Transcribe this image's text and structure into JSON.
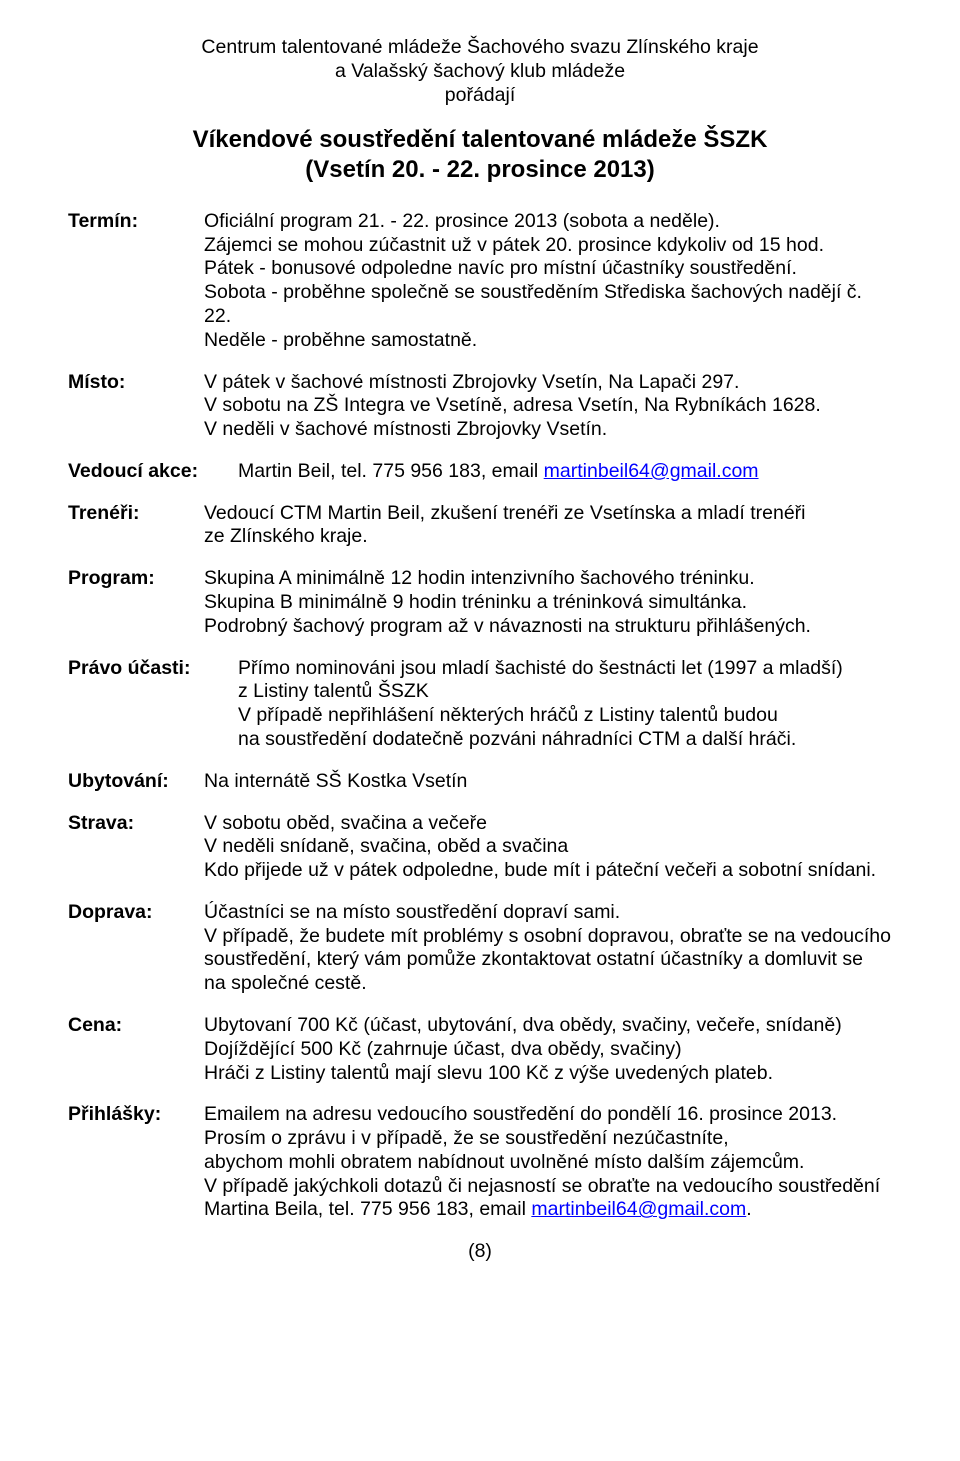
{
  "header": {
    "l1": "Centrum talentované mládeže Šachového svazu Zlínského kraje",
    "l2": "a Valašský šachový klub mládeže",
    "l3": "pořádají",
    "title": "Víkendové soustředění talentované mládeže ŠSZK",
    "sub": "(Vsetín 20. - 22. prosince 2013)"
  },
  "labels": {
    "termin": "Termín:",
    "misto": "Místo:",
    "vedouci": "Vedoucí akce:",
    "treneri": "Trenéři:",
    "program": "Program:",
    "pravo": "Právo účasti:",
    "ubytovani": "Ubytování:",
    "strava": "Strava:",
    "doprava": "Doprava:",
    "cena": "Cena:",
    "prihlasky": "Přihlášky:"
  },
  "termin": {
    "p1": "Oficiální program 21. - 22. prosince 2013 (sobota a neděle).",
    "p2": "Zájemci se mohou zúčastnit už v pátek 20. prosince kdykoliv od 15 hod.",
    "p3": "Pátek - bonusové odpoledne navíc pro místní účastníky soustředění.",
    "p4": "Sobota - proběhne společně se soustředěním Střediska šachových nadějí č. 22.",
    "p5": "Neděle - proběhne samostatně."
  },
  "misto": {
    "p1": "V pátek v šachové místnosti Zbrojovky Vsetín, Na Lapači 297.",
    "p2": "V sobotu na ZŠ Integra ve Vsetíně, adresa Vsetín, Na Rybníkách 1628.",
    "p3": "V neděli v šachové místnosti Zbrojovky Vsetín."
  },
  "vedouci": {
    "pre": "Martin Beil, tel. 775 956 183, email ",
    "mail": "martinbeil64@gmail.com"
  },
  "treneri": {
    "p1": "Vedoucí CTM Martin Beil, zkušení trenéři ze Vsetínska a mladí trenéři",
    "p2": "ze Zlínského kraje."
  },
  "program": {
    "p1": "Skupina A minimálně 12 hodin intenzivního šachového tréninku.",
    "p2": "Skupina B minimálně 9 hodin tréninku a tréninková simultánka.",
    "p3": "Podrobný šachový program až v návaznosti na strukturu přihlášených."
  },
  "pravo": {
    "p1": "Přímo nominováni jsou mladí šachisté do šestnácti let (1997 a mladší)",
    "p2": "z Listiny talentů ŠSZK",
    "p3": "V případě nepřihlášení některých hráčů z Listiny talentů budou",
    "p4": "na soustředění dodatečně pozváni náhradníci CTM a další hráči."
  },
  "ubytovani": {
    "p1": "Na internátě SŠ Kostka Vsetín"
  },
  "strava": {
    "p1": "V sobotu oběd, svačina a večeře",
    "p2": "V neděli snídaně, svačina, oběd a svačina",
    "p3": "Kdo přijede už v pátek odpoledne, bude mít i páteční večeři a sobotní snídani."
  },
  "doprava": {
    "p1": "Účastníci se na místo soustředění dopraví sami.",
    "p2": "V případě, že budete mít problémy s osobní dopravou, obraťte se na vedoucího",
    "p3": "soustředění, který vám pomůže zkontaktovat ostatní účastníky a domluvit se",
    "p4": "na společné cestě."
  },
  "cena": {
    "p1": "Ubytovaní 700 Kč (účast, ubytování, dva obědy, svačiny, večeře, snídaně)",
    "p2": "Dojíždějící 500 Kč (zahrnuje účast, dva obědy, svačiny)",
    "p3": "Hráči z Listiny talentů mají slevu 100 Kč z výše uvedených plateb."
  },
  "prihlasky": {
    "p1": "Emailem na adresu vedoucího soustředění do pondělí 16. prosince 2013.",
    "p2": "Prosím o zprávu i v případě, že se soustředění nezúčastníte,",
    "p3": "abychom mohli obratem nabídnout uvolněné místo dalším zájemcům.",
    "p4": "V případě jakýchkoli dotazů či nejasností se obraťte na vedoucího soustředění",
    "p5pre": "Martina Beila, tel. 775 956 183, email ",
    "mail": "martinbeil64@gmail.com",
    "p5post": "."
  },
  "footer": "(8)"
}
